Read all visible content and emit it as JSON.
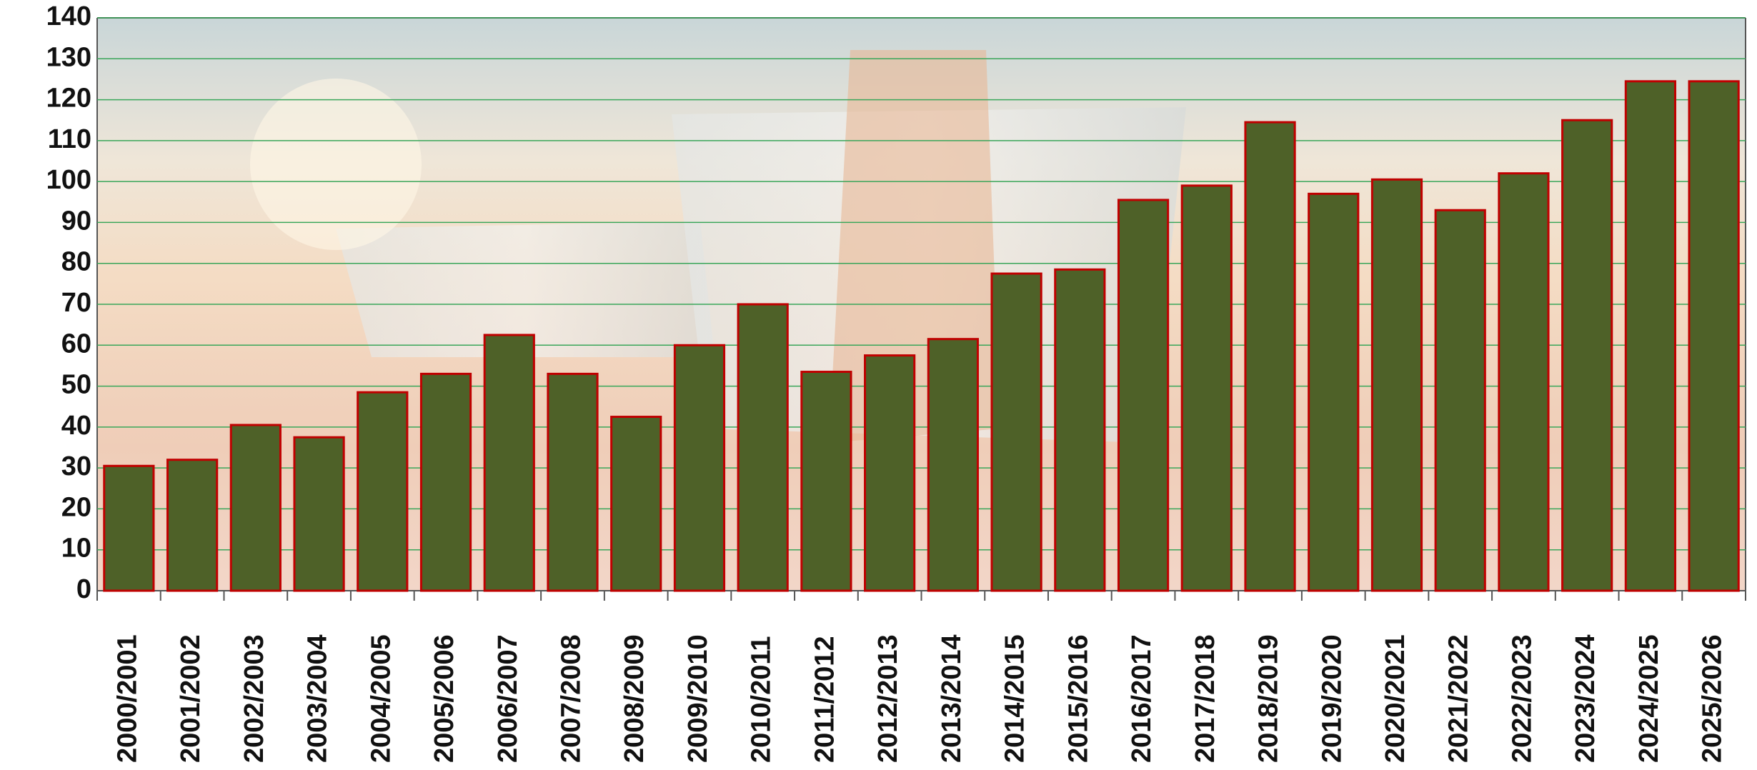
{
  "chart_data": {
    "type": "bar",
    "categories": [
      "2000/2001",
      "2001/2002",
      "2002/2003",
      "2003/2004",
      "2004/2005",
      "2005/2006",
      "2006/2007",
      "2007/2008",
      "2008/2009",
      "2009/2010",
      "2010/2011",
      "2011/2012",
      "2012/2013",
      "2013/2014",
      "2014/2015",
      "2015/2016",
      "2016/2017",
      "2017/2018",
      "2018/2019",
      "2019/2020",
      "2020/2021",
      "2021/2022",
      "2022/2023",
      "2023/2024",
      "2024/2025",
      "2025/2026"
    ],
    "values": [
      30.5,
      32,
      40.5,
      37.5,
      48.5,
      53,
      62.5,
      53,
      42.5,
      60,
      70,
      53.5,
      57.5,
      61.5,
      77.5,
      78.5,
      95.5,
      99,
      114.5,
      97,
      100.5,
      93,
      102,
      115,
      124.5,
      124.5
    ],
    "color": "#4e6128",
    "edge_color": "#c00000",
    "ylim": [
      0,
      140
    ],
    "yticks": [
      0,
      10,
      20,
      30,
      40,
      50,
      60,
      70,
      80,
      90,
      100,
      110,
      120,
      130,
      140
    ],
    "grid": true,
    "grid_color": "#3aa65a"
  }
}
